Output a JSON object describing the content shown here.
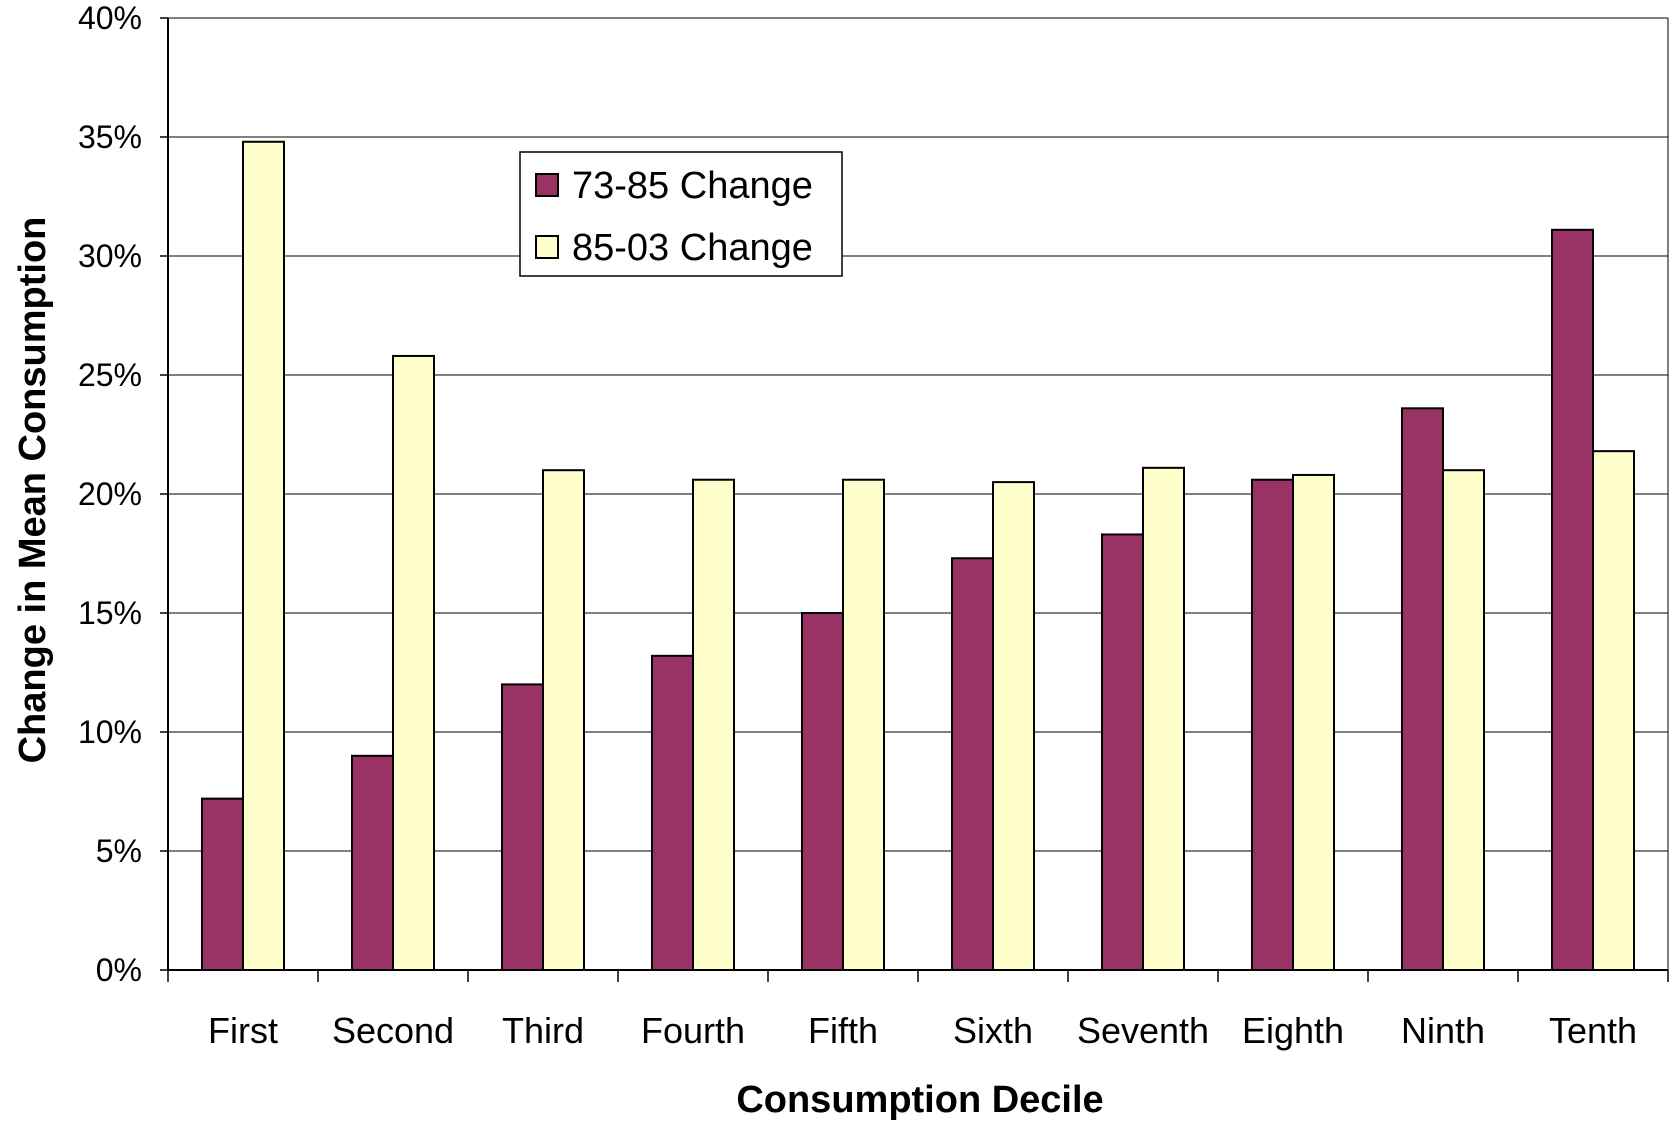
{
  "chart_data": {
    "type": "bar",
    "title": "",
    "xlabel": "Consumption Decile",
    "ylabel": "Change in Mean Consumption",
    "ylim": [
      0,
      40
    ],
    "ytick_step": 5,
    "ytick_suffix": "%",
    "grid": true,
    "legend_position": "top-left-inside",
    "categories": [
      "First",
      "Second",
      "Third",
      "Fourth",
      "Fifth",
      "Sixth",
      "Seventh",
      "Eighth",
      "Ninth",
      "Tenth"
    ],
    "series": [
      {
        "name": "73-85 Change",
        "color": "#993366",
        "values": [
          7.2,
          9.0,
          12.0,
          13.2,
          15.0,
          17.3,
          18.3,
          20.6,
          23.6,
          31.1
        ]
      },
      {
        "name": "85-03 Change",
        "color": "#FFFFCC",
        "values": [
          34.8,
          25.8,
          21.0,
          20.6,
          20.6,
          20.5,
          21.1,
          20.8,
          21.0,
          21.8
        ]
      }
    ]
  }
}
